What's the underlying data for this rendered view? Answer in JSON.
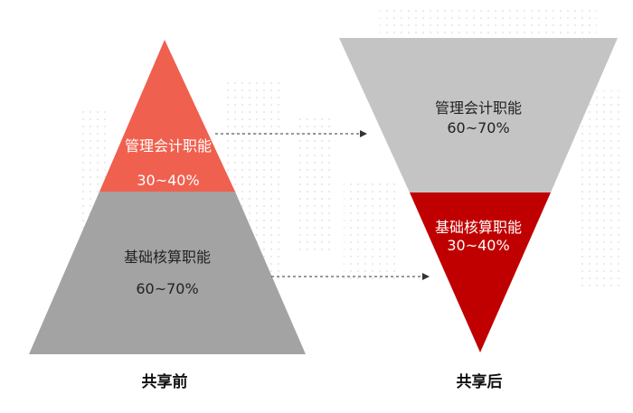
{
  "before": {
    "caption": "共享前",
    "top": {
      "label": "管理会计职能",
      "range": "30~40%",
      "color": "#f0604f"
    },
    "bottom": {
      "label": "基础核算职能",
      "range": "60~70%",
      "color": "#a3a3a3"
    }
  },
  "after": {
    "caption": "共享后",
    "top": {
      "label": "管理会计职能",
      "range": "60~70%",
      "color": "#c4c4c4"
    },
    "bottom": {
      "label": "基础核算职能",
      "range": "30~40%",
      "color": "#c00000"
    }
  },
  "arrow_color": "#333333"
}
